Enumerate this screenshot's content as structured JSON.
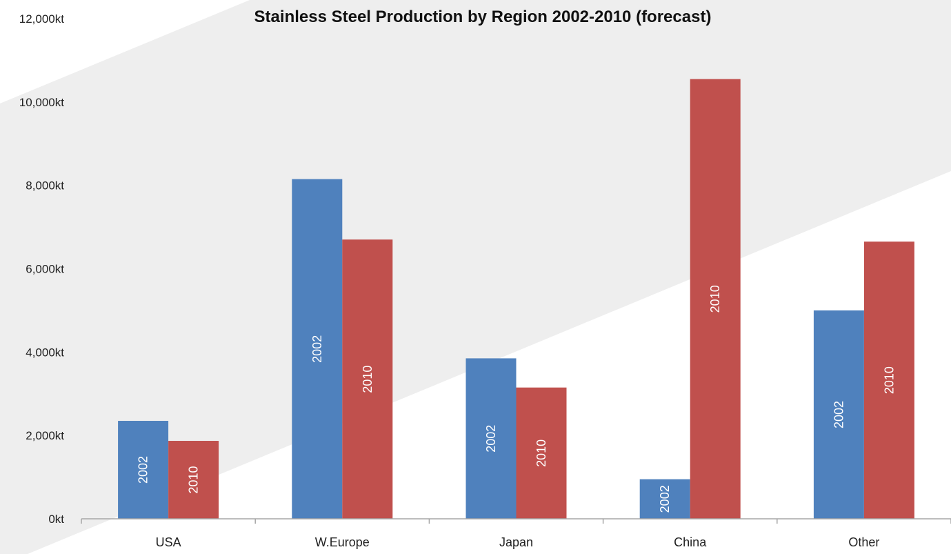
{
  "chart_data": {
    "type": "bar",
    "title": "Stainless Steel Production by Region 2002-2010 (forecast)",
    "xlabel": "",
    "ylabel": "",
    "categories": [
      "USA",
      "W.Europe",
      "Japan",
      "China",
      "Other"
    ],
    "series": [
      {
        "label": "2002",
        "color": "#4f81bd",
        "values": [
          2350,
          8150,
          3850,
          950,
          5000
        ]
      },
      {
        "label": "2010",
        "color": "#c0504d",
        "values": [
          1870,
          6700,
          3150,
          10550,
          6650
        ]
      }
    ],
    "ylim": [
      0,
      12000
    ],
    "yticks": [
      0,
      2000,
      4000,
      6000,
      8000,
      10000,
      12000
    ],
    "ytick_labels": [
      "0kt",
      "2,000kt",
      "4,000kt",
      "6,000kt",
      "8,000kt",
      "10,000kt",
      "12,000kt"
    ],
    "grid": false,
    "legend": "none"
  },
  "background": {
    "page_color": "#ffffff",
    "band_color": "#eeeeee"
  }
}
